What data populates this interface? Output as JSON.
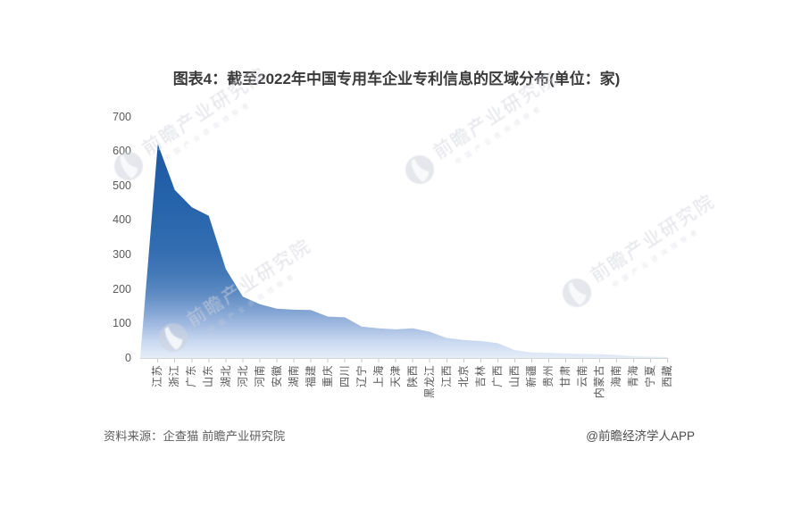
{
  "title": "图表4：截至2022年中国专用车企业专利信息的区域分布(单位：家)",
  "source_note": "资料来源：企查猫 前瞻产业研究院",
  "credit": "@前瞻经济学人APP",
  "watermark": {
    "logo_icon": "qianzhan-circle-logo",
    "logo_text": "前瞻产业研究院",
    "tagline": "中国产业咨询领导者"
  },
  "chart_data": {
    "type": "area",
    "title": "图表4：截至2022年中国专用车企业专利信息的区域分布(单位：家)",
    "unit": "家",
    "xlabel": "",
    "ylabel": "",
    "ylim": [
      0,
      700
    ],
    "ytick_interval": 100,
    "yticks": [
      0,
      100,
      200,
      300,
      400,
      500,
      600,
      700
    ],
    "grid": false,
    "legend": false,
    "categories": [
      "江苏",
      "浙江",
      "广东",
      "山东",
      "湖北",
      "河北",
      "河南",
      "安徽",
      "湖南",
      "福建",
      "重庆",
      "四川",
      "辽宁",
      "上海",
      "天津",
      "陕西",
      "黑龙江",
      "江西",
      "北京",
      "吉林",
      "广西",
      "山西",
      "新疆",
      "贵州",
      "甘肃",
      "云南",
      "内蒙古",
      "海南",
      "青海",
      "宁夏",
      "西藏"
    ],
    "values": [
      620,
      487,
      437,
      412,
      258,
      178,
      156,
      143,
      140,
      139,
      120,
      118,
      91,
      86,
      83,
      86,
      76,
      58,
      52,
      49,
      43,
      23,
      16,
      15,
      13,
      12,
      11,
      9,
      5,
      4,
      3
    ],
    "colors": {
      "gradient_top": "#19539f",
      "gradient_bottom": "#e6edf9",
      "axis_line": "#d4d4d4",
      "tick": "#c9c9c9",
      "label": "#595959"
    }
  }
}
